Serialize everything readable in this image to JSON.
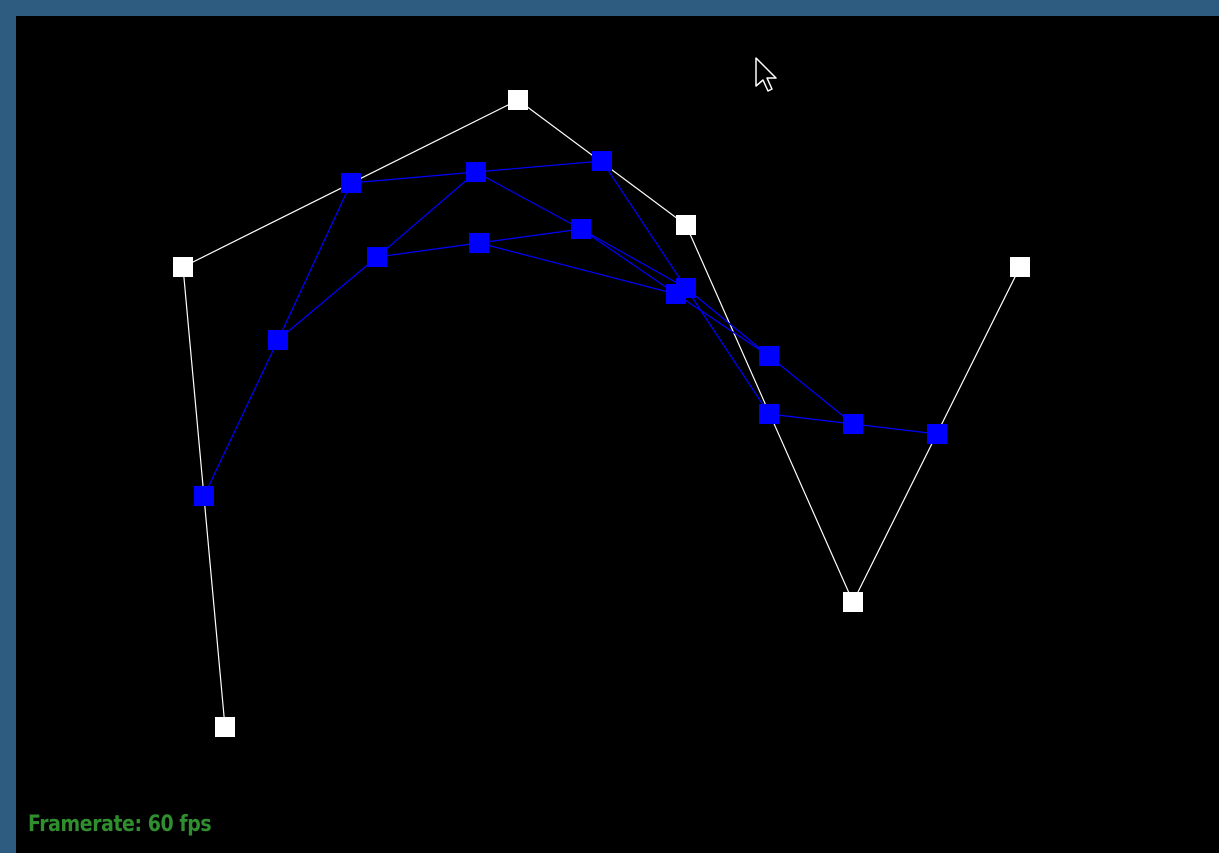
{
  "status": {
    "framerate_label": "Framerate:",
    "framerate_value": "60",
    "framerate_unit": "fps"
  },
  "colors": {
    "background": "#000000",
    "frame": "#2e5c80",
    "control_polygon": "#ffffff",
    "construction": "#0000ff",
    "status_text": "#2f8f2f"
  },
  "icons": {
    "cursor": "mouse-pointer-icon"
  }
}
